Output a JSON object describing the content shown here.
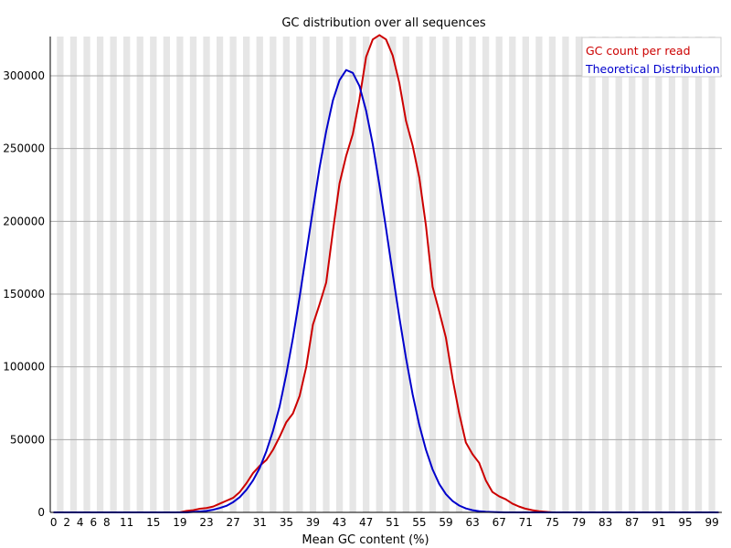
{
  "chart_data": {
    "type": "line",
    "title": "GC distribution over all sequences",
    "xlabel": "Mean GC content (%)",
    "ylabel": "",
    "xlim": [
      0,
      101
    ],
    "ylim": [
      0,
      327000
    ],
    "x_tick_labels": [
      "0",
      "2",
      "4",
      "6",
      "8",
      "11",
      "15",
      "19",
      "23",
      "27",
      "31",
      "35",
      "39",
      "43",
      "47",
      "51",
      "55",
      "59",
      "63",
      "67",
      "71",
      "75",
      "79",
      "83",
      "87",
      "91",
      "95",
      "99"
    ],
    "y_tick_labels": [
      "0",
      "50000",
      "100000",
      "150000",
      "200000",
      "250000",
      "300000"
    ],
    "legend_position": "top-right",
    "grid": true,
    "series": [
      {
        "name": "GC count per read",
        "color": "#cc0000",
        "points": [
          [
            0,
            0
          ],
          [
            19,
            0
          ],
          [
            20,
            1000
          ],
          [
            21,
            1500
          ],
          [
            22,
            2500
          ],
          [
            23,
            3000
          ],
          [
            24,
            4000
          ],
          [
            25,
            6000
          ],
          [
            26,
            8000
          ],
          [
            27,
            10000
          ],
          [
            28,
            14000
          ],
          [
            29,
            20000
          ],
          [
            30,
            27000
          ],
          [
            31,
            32000
          ],
          [
            32,
            36000
          ],
          [
            33,
            43000
          ],
          [
            34,
            52000
          ],
          [
            35,
            62000
          ],
          [
            36,
            68000
          ],
          [
            37,
            80000
          ],
          [
            38,
            100000
          ],
          [
            39,
            129000
          ],
          [
            40,
            143000
          ],
          [
            41,
            158000
          ],
          [
            42,
            193000
          ],
          [
            43,
            226000
          ],
          [
            44,
            245000
          ],
          [
            45,
            260000
          ],
          [
            46,
            284000
          ],
          [
            47,
            313000
          ],
          [
            48,
            325000
          ],
          [
            49,
            328000
          ],
          [
            50,
            325000
          ],
          [
            51,
            314000
          ],
          [
            52,
            295000
          ],
          [
            53,
            269000
          ],
          [
            54,
            252000
          ],
          [
            55,
            230000
          ],
          [
            56,
            197000
          ],
          [
            57,
            155000
          ],
          [
            58,
            138000
          ],
          [
            59,
            120000
          ],
          [
            60,
            92000
          ],
          [
            61,
            68000
          ],
          [
            62,
            48000
          ],
          [
            63,
            40000
          ],
          [
            64,
            34000
          ],
          [
            65,
            22000
          ],
          [
            66,
            14000
          ],
          [
            67,
            11000
          ],
          [
            68,
            9000
          ],
          [
            69,
            6000
          ],
          [
            70,
            4000
          ],
          [
            71,
            2500
          ],
          [
            72,
            1500
          ],
          [
            73,
            800
          ],
          [
            74,
            400
          ],
          [
            75,
            0
          ],
          [
            100,
            0
          ]
        ]
      },
      {
        "name": "Theoretical Distribution",
        "color": "#0000cc",
        "points": [
          [
            0,
            0
          ],
          [
            20,
            0
          ],
          [
            21,
            300
          ],
          [
            22,
            600
          ],
          [
            23,
            1000
          ],
          [
            24,
            1800
          ],
          [
            25,
            3000
          ],
          [
            26,
            4500
          ],
          [
            27,
            7000
          ],
          [
            28,
            10500
          ],
          [
            29,
            15500
          ],
          [
            30,
            22000
          ],
          [
            31,
            30500
          ],
          [
            32,
            42000
          ],
          [
            33,
            56000
          ],
          [
            34,
            73000
          ],
          [
            35,
            95000
          ],
          [
            36,
            120000
          ],
          [
            37,
            148000
          ],
          [
            38,
            178000
          ],
          [
            39,
            208000
          ],
          [
            40,
            237000
          ],
          [
            41,
            262000
          ],
          [
            42,
            283000
          ],
          [
            43,
            297000
          ],
          [
            44,
            304000
          ],
          [
            45,
            302000
          ],
          [
            46,
            293000
          ],
          [
            47,
            276000
          ],
          [
            48,
            253000
          ],
          [
            49,
            225000
          ],
          [
            50,
            195000
          ],
          [
            51,
            164000
          ],
          [
            52,
            134000
          ],
          [
            53,
            106000
          ],
          [
            54,
            81000
          ],
          [
            55,
            60000
          ],
          [
            56,
            43000
          ],
          [
            57,
            29500
          ],
          [
            58,
            19500
          ],
          [
            59,
            12500
          ],
          [
            60,
            7800
          ],
          [
            61,
            4700
          ],
          [
            62,
            2700
          ],
          [
            63,
            1500
          ],
          [
            64,
            800
          ],
          [
            65,
            400
          ],
          [
            66,
            200
          ],
          [
            67,
            80
          ],
          [
            68,
            0
          ],
          [
            100,
            0
          ]
        ]
      }
    ]
  },
  "colors": {
    "band": "#e6e6e6",
    "grid": "#aaaaaa",
    "axis": "#000000"
  }
}
